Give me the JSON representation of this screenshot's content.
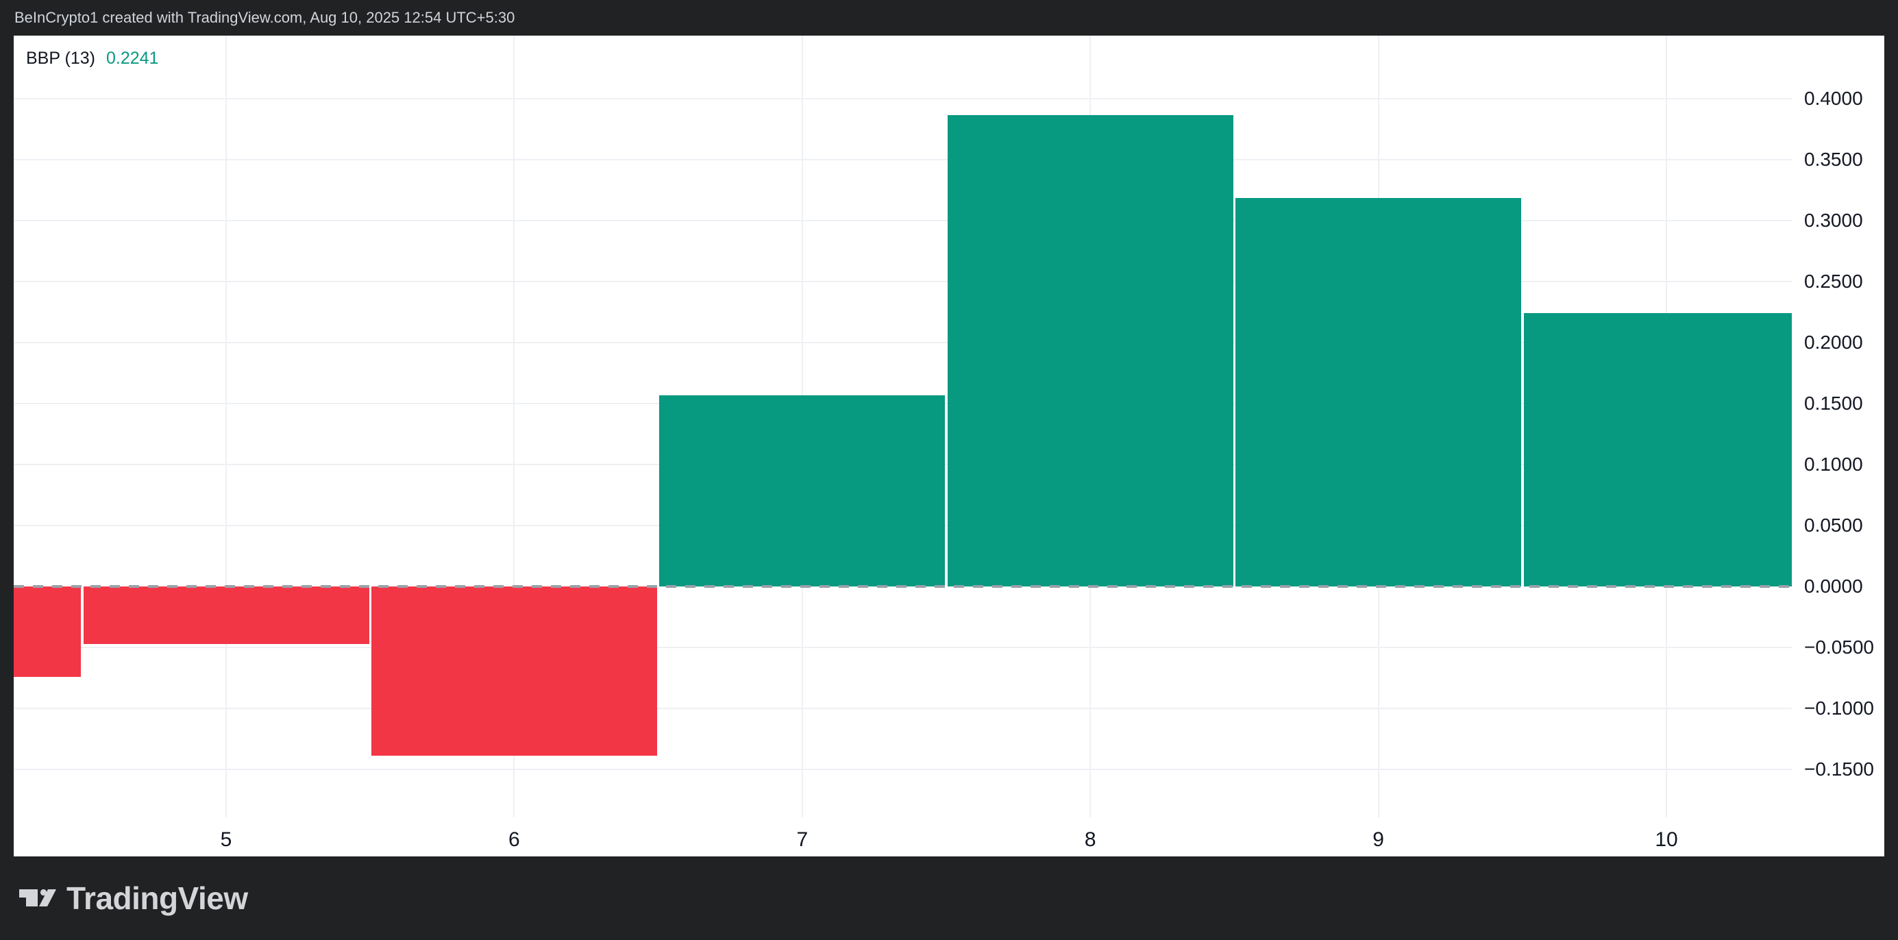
{
  "frame": {
    "attribution": "BeInCrypto1 created with TradingView.com, Aug 10, 2025 12:54 UTC+5:30",
    "brand_wordmark": "TradingView"
  },
  "legend": {
    "indicator": "BBP (13)",
    "value": "0.2241"
  },
  "colors": {
    "positive": "#089981",
    "negative": "#F23645",
    "value_text": "#089981",
    "frame_bg": "#212223",
    "axis_text": "#131722",
    "grid": "#eef0f4",
    "zero_line": "#9aa0a8"
  },
  "chart_data": {
    "type": "bar",
    "title": "BBP (13)",
    "x": [
      4,
      5,
      6,
      7,
      8,
      9,
      10
    ],
    "values": [
      -0.0742,
      -0.0472,
      -0.1388,
      0.1567,
      0.3865,
      0.3185,
      0.2241
    ],
    "x_tick_labels": [
      "5",
      "6",
      "7",
      "8",
      "9",
      "10"
    ],
    "x_tick_values": [
      5,
      6,
      7,
      8,
      9,
      10
    ],
    "y_tick_labels": [
      "0.4000",
      "0.3500",
      "0.3000",
      "0.2500",
      "0.2000",
      "0.1500",
      "0.1000",
      "0.0500",
      "0.0000",
      "−0.0500",
      "−0.1000",
      "−0.1500"
    ],
    "y_tick_values": [
      0.4,
      0.35,
      0.3,
      0.25,
      0.2,
      0.15,
      0.1,
      0.05,
      0.0,
      -0.05,
      -0.1,
      -0.15
    ],
    "ylim": [
      -0.189,
      0.452
    ],
    "xlabel": "",
    "ylabel": "",
    "grid": true,
    "zero_line_style": "dashed",
    "legend_position": "top-left"
  }
}
